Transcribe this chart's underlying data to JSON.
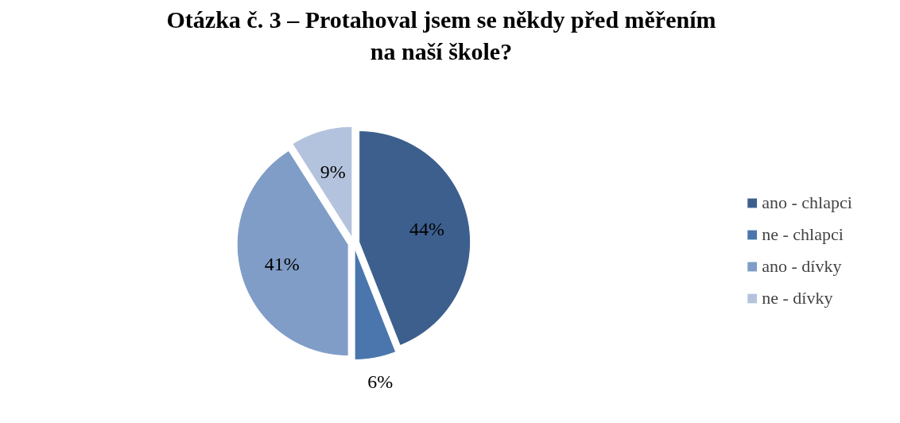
{
  "chart_data": {
    "type": "pie",
    "title": "Otázka č. 3 – Protahoval jsem se někdy před měřením\nna naší škole?",
    "categories": [
      "ano - chlapci",
      "ne - chlapci",
      "ano - dívky",
      "ne - dívky"
    ],
    "values": [
      44,
      6,
      41,
      9
    ],
    "value_labels": [
      "44%",
      "6%",
      "41%",
      "9%"
    ],
    "colors": [
      "#3d5f8e",
      "#4a76ad",
      "#809dc8",
      "#b4c3dd"
    ],
    "legend": "right"
  }
}
